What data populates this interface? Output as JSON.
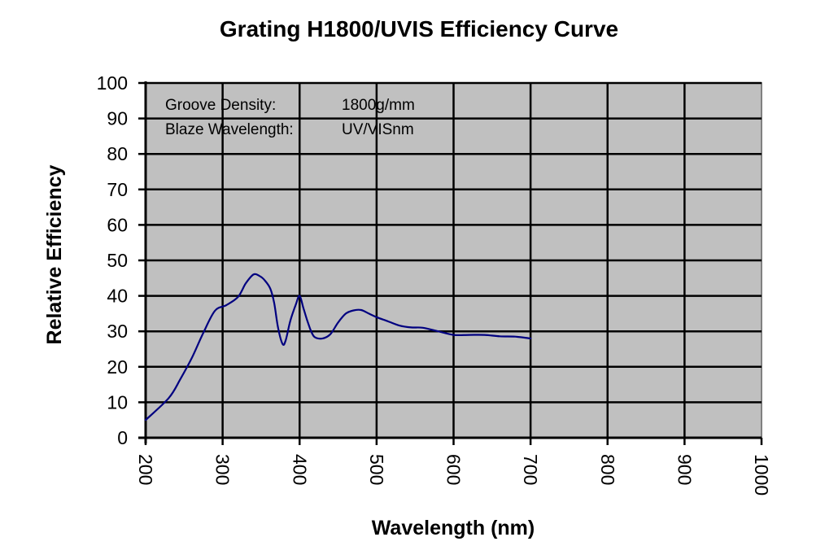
{
  "chart_data": {
    "type": "line",
    "title": "Grating H1800/UVIS Efficiency Curve",
    "xlabel": "Wavelength (nm)",
    "ylabel": "Relative Efficiency",
    "xlim": [
      200,
      1000
    ],
    "ylim": [
      0,
      100
    ],
    "xticks": [
      200,
      300,
      400,
      500,
      600,
      700,
      800,
      900,
      1000
    ],
    "yticks": [
      0,
      10,
      20,
      30,
      40,
      50,
      60,
      70,
      80,
      90,
      100
    ],
    "grid": true,
    "legend": "none",
    "plot_background": "#c0c0c0",
    "annotations": [
      {
        "label": "Groove Density:",
        "value": "1800g/mm"
      },
      {
        "label": "Blaze Wavelength:",
        "value": "UV/VISnm"
      }
    ],
    "series": [
      {
        "name": "Relative Efficiency",
        "color": "#000080",
        "x": [
          200,
          230,
          245,
          260,
          275,
          290,
          305,
          320,
          330,
          340,
          348,
          355,
          362,
          367,
          372,
          378,
          382,
          388,
          395,
          400,
          405,
          410,
          415,
          420,
          430,
          440,
          450,
          460,
          470,
          480,
          490,
          500,
          515,
          530,
          545,
          560,
          580,
          600,
          620,
          640,
          660,
          680,
          700
        ],
        "y": [
          5,
          11.2,
          16.5,
          22.5,
          29.6,
          35.8,
          37.4,
          39.7,
          43.5,
          46,
          45.6,
          44.3,
          42,
          38,
          31,
          26.4,
          27.5,
          33,
          37.5,
          40,
          36.5,
          33,
          30,
          28.3,
          28,
          29.2,
          32.5,
          35,
          35.9,
          36,
          35,
          34,
          32.8,
          31.6,
          31.1,
          31,
          30,
          29,
          29,
          29,
          28.6,
          28.5,
          28
        ]
      }
    ]
  }
}
